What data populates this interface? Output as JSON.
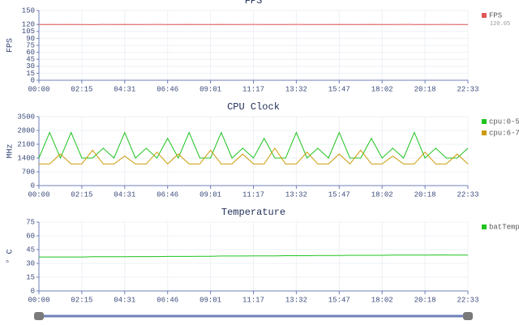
{
  "chart_data": [
    {
      "type": "line",
      "title": "FPS",
      "ylabel": "FPS",
      "x": [
        "00:00",
        null,
        null,
        null,
        "02:15",
        null,
        null,
        null,
        "04:31",
        null,
        null,
        null,
        "06:46",
        null,
        null,
        null,
        "09:01",
        null,
        null,
        null,
        "11:17",
        null,
        null,
        null,
        "13:32",
        null,
        null,
        null,
        "15:47",
        null,
        null,
        null,
        "18:02",
        null,
        null,
        null,
        "20:18",
        null,
        null,
        null,
        "22:33"
      ],
      "series": [
        {
          "name": "FPS",
          "color": "#e05555",
          "legend_value": 120.05,
          "values": [
            120,
            120.2,
            119.8,
            120.1,
            120,
            119.6,
            120.2,
            120,
            120.1,
            119.9,
            120,
            120.2,
            120,
            119.8,
            120.1,
            120,
            120,
            120.2,
            119.9,
            120,
            120.1,
            120,
            119.8,
            120,
            120.2,
            120,
            120,
            119.9,
            120.1,
            120,
            120,
            120.2,
            119.8,
            120,
            120.1,
            120,
            119.9,
            120,
            120.2,
            120,
            120
          ]
        }
      ],
      "ylim": [
        0,
        150
      ],
      "yticks": [
        0,
        15,
        30,
        45,
        60,
        75,
        90,
        105,
        120,
        150
      ],
      "grid": true
    },
    {
      "type": "line",
      "title": "CPU Clock",
      "ylabel": "MHz",
      "x": [
        "00:00",
        null,
        null,
        null,
        "02:15",
        null,
        null,
        null,
        "04:31",
        null,
        null,
        null,
        "06:46",
        null,
        null,
        null,
        "09:01",
        null,
        null,
        null,
        "11:17",
        null,
        null,
        null,
        "13:32",
        null,
        null,
        null,
        "15:47",
        null,
        null,
        null,
        "18:02",
        null,
        null,
        null,
        "20:18",
        null,
        null,
        null,
        "22:33"
      ],
      "series": [
        {
          "name": "cpu:0-5",
          "color": "#1fc31f",
          "values": [
            1400,
            2700,
            1400,
            2700,
            1400,
            1400,
            1900,
            1400,
            2700,
            1400,
            1900,
            1400,
            2400,
            1400,
            2700,
            1400,
            1400,
            2700,
            1400,
            1900,
            1400,
            2400,
            1400,
            1400,
            2700,
            1400,
            1900,
            1400,
            2700,
            1400,
            1400,
            2400,
            1400,
            1900,
            1400,
            2700,
            1400,
            1900,
            1400,
            1400,
            1900
          ]
        },
        {
          "name": "cpu:6-7",
          "color": "#cc9a06",
          "values": [
            1100,
            1100,
            1600,
            1100,
            1100,
            1800,
            1100,
            1100,
            1500,
            1100,
            1100,
            1700,
            1100,
            1600,
            1100,
            1100,
            1800,
            1100,
            1100,
            1600,
            1100,
            1100,
            1900,
            1100,
            1100,
            1700,
            1100,
            1100,
            1600,
            1100,
            1800,
            1100,
            1100,
            1500,
            1100,
            1100,
            1700,
            1100,
            1100,
            1600,
            1100
          ]
        }
      ],
      "ylim": [
        0,
        3500
      ],
      "yticks": [
        0,
        700,
        1400,
        2100,
        2800,
        3500
      ],
      "grid": true
    },
    {
      "type": "line",
      "title": "Temperature",
      "ylabel": "° C",
      "x": [
        "00:00",
        null,
        null,
        null,
        "02:15",
        null,
        null,
        null,
        "04:31",
        null,
        null,
        null,
        "06:46",
        null,
        null,
        null,
        "09:01",
        null,
        null,
        null,
        "11:17",
        null,
        null,
        null,
        "13:32",
        null,
        null,
        null,
        "15:47",
        null,
        null,
        null,
        "18:02",
        null,
        null,
        null,
        "20:18",
        null,
        null,
        null,
        "22:33"
      ],
      "series": [
        {
          "name": "batTemp",
          "color": "#1fc31f",
          "values": [
            37,
            37,
            37,
            37,
            37,
            37.2,
            37.2,
            37.2,
            37.2,
            37.4,
            37.4,
            37.4,
            37.6,
            37.6,
            37.6,
            37.8,
            37.8,
            38,
            38,
            38,
            38.2,
            38.2,
            38.2,
            38.4,
            38.4,
            38.4,
            38.6,
            38.6,
            38.6,
            38.8,
            38.8,
            38.8,
            38.8,
            39,
            39,
            39,
            39,
            39.2,
            39.2,
            39,
            39
          ]
        }
      ],
      "ylim": [
        0,
        75
      ],
      "yticks": [
        0,
        15,
        30,
        45,
        60,
        75
      ],
      "grid": true
    }
  ]
}
